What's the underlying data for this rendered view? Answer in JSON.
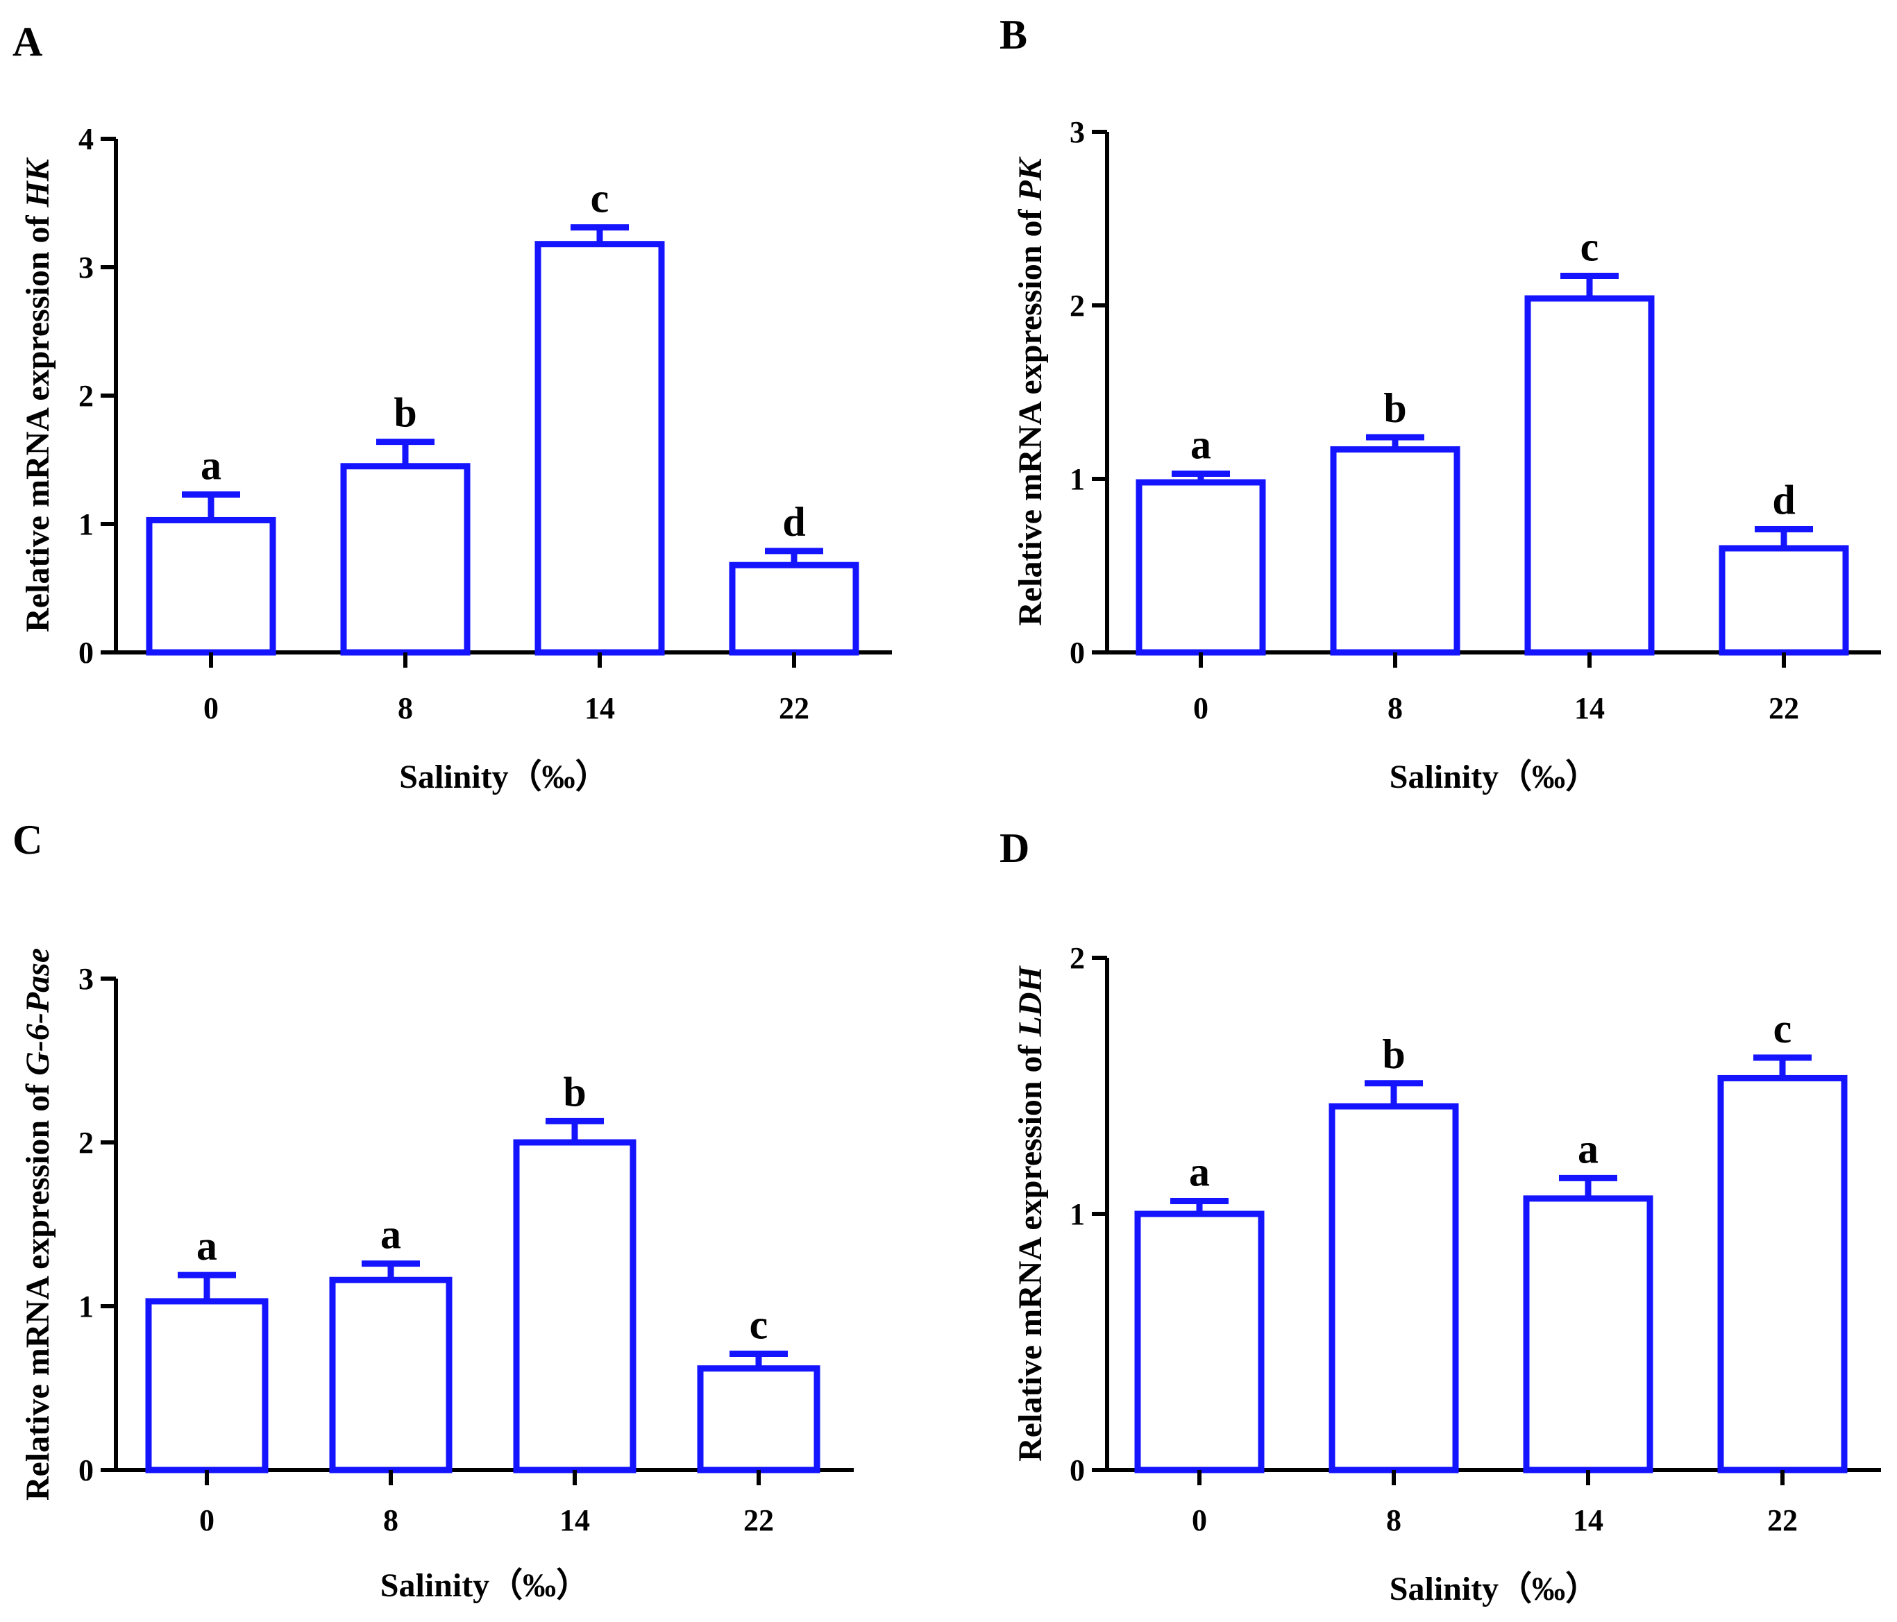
{
  "colors": {
    "bar_stroke": "#1414ff",
    "axis": "#000000",
    "background": "#ffffff"
  },
  "chart_data": [
    {
      "panel": "A",
      "type": "bar",
      "categories": [
        "0",
        "8",
        "14",
        "22"
      ],
      "values": [
        1.03,
        1.45,
        3.18,
        0.68
      ],
      "errors": [
        0.2,
        0.19,
        0.13,
        0.11
      ],
      "significance": [
        "a",
        "b",
        "c",
        "d"
      ],
      "ylim": [
        0,
        4
      ],
      "yticks": [
        "0",
        "1",
        "2",
        "3",
        "4"
      ],
      "xlabel": "Salinity（‰）",
      "ylabel_prefix": "Relative mRNA expression of ",
      "ylabel_gene": "HK"
    },
    {
      "panel": "B",
      "type": "bar",
      "categories": [
        "0",
        "8",
        "14",
        "22"
      ],
      "values": [
        0.98,
        1.17,
        2.04,
        0.6
      ],
      "errors": [
        0.05,
        0.07,
        0.13,
        0.11
      ],
      "significance": [
        "a",
        "b",
        "c",
        "d"
      ],
      "ylim": [
        0,
        3
      ],
      "yticks": [
        "0",
        "1",
        "2",
        "3"
      ],
      "xlabel": "Salinity（‰）",
      "ylabel_prefix": "Relative mRNA expression of ",
      "ylabel_gene": "PK"
    },
    {
      "panel": "C",
      "type": "bar",
      "categories": [
        "0",
        "8",
        "14",
        "22"
      ],
      "values": [
        1.03,
        1.16,
        2.0,
        0.62
      ],
      "errors": [
        0.16,
        0.1,
        0.13,
        0.09
      ],
      "significance": [
        "a",
        "a",
        "b",
        "c"
      ],
      "ylim": [
        0,
        3
      ],
      "yticks": [
        "0",
        "1",
        "2",
        "3"
      ],
      "xlabel": "Salinity（‰）",
      "ylabel_prefix": "Relative mRNA expression of ",
      "ylabel_gene": "G-6-Pase"
    },
    {
      "panel": "D",
      "type": "bar",
      "categories": [
        "0",
        "8",
        "14",
        "22"
      ],
      "values": [
        1.0,
        1.42,
        1.06,
        1.53
      ],
      "errors": [
        0.05,
        0.09,
        0.08,
        0.08
      ],
      "significance": [
        "a",
        "b",
        "a",
        "c"
      ],
      "ylim": [
        0,
        2
      ],
      "yticks": [
        "0",
        "1",
        "2"
      ],
      "xlabel": "Salinity（‰）",
      "ylabel_prefix": "Relative mRNA expression of ",
      "ylabel_gene": "LDH"
    }
  ]
}
